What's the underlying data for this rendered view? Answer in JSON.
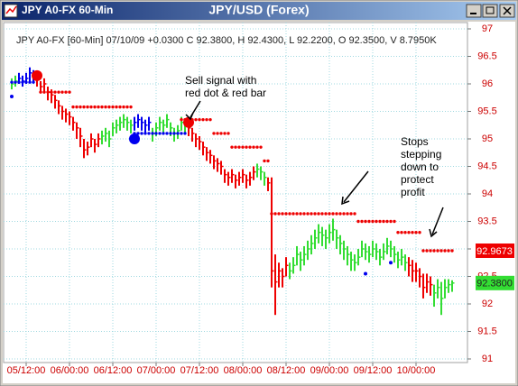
{
  "chart_data": {
    "type": "ohlc",
    "window_title": "JPY A0-FX 60-Min",
    "title": "JPY/USD (Forex)",
    "info": "JPY A0-FX [60-Min] 07/10/09 +0.0300 C 92.3800, H 92.4300, L 92.2200, O 92.3500, V 8.7950K",
    "categories": [
      null,
      null,
      null,
      null,
      "05/12:00",
      null,
      null,
      null,
      null,
      null,
      null,
      null,
      null,
      null,
      null,
      null,
      "06/00:00",
      null,
      null,
      null,
      null,
      null,
      null,
      null,
      null,
      null,
      null,
      null,
      "06/12:00",
      null,
      null,
      null,
      null,
      null,
      null,
      null,
      null,
      null,
      null,
      null,
      "07/00:00",
      null,
      null,
      null,
      null,
      null,
      null,
      null,
      null,
      null,
      null,
      null,
      "07/12:00",
      null,
      null,
      null,
      null,
      null,
      null,
      null,
      null,
      null,
      null,
      null,
      "08/00:00",
      null,
      null,
      null,
      null,
      null,
      null,
      null,
      null,
      null,
      null,
      null,
      "08/12:00",
      null,
      null,
      null,
      null,
      null,
      null,
      null,
      null,
      null,
      null,
      null,
      "09/00:00",
      null,
      null,
      null,
      null,
      null,
      null,
      null,
      null,
      null,
      null,
      null,
      "09/12:00",
      null,
      null,
      null,
      null,
      null,
      null,
      null,
      null,
      null,
      null,
      null,
      "10/00:00",
      null,
      null,
      null,
      null,
      null,
      null,
      null,
      null,
      null,
      null
    ],
    "high": [
      96.1,
      96.15,
      96.2,
      96.15,
      96.2,
      96.3,
      96.25,
      96.2,
      96.05,
      96.1,
      95.95,
      95.9,
      95.8,
      95.7,
      95.6,
      95.55,
      95.5,
      95.4,
      95.3,
      95.2,
      95.0,
      94.95,
      95.1,
      95.0,
      95.1,
      95.15,
      95.2,
      95.15,
      95.3,
      95.35,
      95.4,
      95.45,
      95.4,
      95.35,
      95.4,
      95.45,
      95.4,
      95.35,
      95.4,
      95.2,
      95.3,
      95.4,
      95.35,
      95.45,
      95.3,
      95.2,
      95.25,
      95.4,
      95.35,
      95.3,
      95.2,
      95.1,
      95.05,
      94.95,
      94.85,
      94.8,
      94.7,
      94.65,
      94.6,
      94.45,
      94.4,
      94.45,
      94.35,
      94.4,
      94.45,
      94.35,
      94.4,
      94.5,
      94.55,
      94.5,
      94.4,
      94.3,
      94.3,
      92.9,
      92.75,
      92.65,
      92.85,
      92.75,
      92.85,
      93.05,
      92.95,
      93.05,
      93.15,
      93.25,
      93.35,
      93.45,
      93.4,
      93.35,
      93.45,
      93.55,
      93.35,
      93.25,
      93.15,
      93.05,
      92.95,
      92.9,
      93.0,
      93.15,
      93.1,
      93.05,
      93.15,
      93.1,
      93.0,
      93.1,
      93.2,
      93.15,
      93.05,
      92.95,
      93.0,
      92.9,
      92.85,
      92.8,
      92.75,
      92.65,
      92.55,
      92.55,
      92.5,
      92.35,
      92.45,
      92.4,
      92.45,
      92.45,
      92.43
    ],
    "low": [
      95.9,
      95.95,
      96.0,
      95.95,
      96.0,
      96.05,
      96.05,
      95.95,
      95.85,
      95.85,
      95.7,
      95.65,
      95.55,
      95.45,
      95.35,
      95.3,
      95.25,
      95.15,
      95.0,
      94.85,
      94.65,
      94.7,
      94.85,
      94.75,
      94.85,
      94.9,
      94.95,
      94.85,
      95.05,
      95.1,
      95.15,
      95.2,
      95.15,
      95.1,
      95.15,
      95.2,
      95.15,
      95.1,
      95.15,
      94.95,
      95.05,
      95.15,
      95.1,
      95.2,
      95.05,
      94.95,
      95.0,
      95.15,
      95.1,
      95.05,
      94.95,
      94.85,
      94.8,
      94.7,
      94.6,
      94.55,
      94.45,
      94.4,
      94.35,
      94.2,
      94.15,
      94.2,
      94.1,
      94.15,
      94.2,
      94.1,
      94.15,
      94.25,
      94.3,
      94.25,
      94.15,
      94.05,
      92.3,
      91.8,
      92.3,
      92.3,
      92.5,
      92.45,
      92.55,
      92.7,
      92.6,
      92.7,
      92.8,
      92.9,
      93.0,
      93.1,
      93.05,
      93.0,
      93.1,
      93.15,
      93.0,
      92.9,
      92.8,
      92.7,
      92.6,
      92.6,
      92.7,
      92.85,
      92.8,
      92.75,
      92.85,
      92.8,
      92.7,
      92.8,
      92.9,
      92.85,
      92.75,
      92.65,
      92.7,
      92.6,
      92.5,
      92.4,
      92.4,
      92.3,
      92.1,
      92.2,
      92.15,
      91.95,
      92.1,
      91.8,
      92.1,
      92.2,
      92.22
    ],
    "close": [
      96.0,
      96.05,
      96.1,
      96.05,
      96.1,
      96.2,
      96.15,
      96.1,
      95.95,
      96.0,
      95.85,
      95.8,
      95.7,
      95.6,
      95.5,
      95.45,
      95.4,
      95.3,
      95.2,
      95.05,
      94.8,
      94.85,
      95.0,
      94.9,
      95.0,
      95.05,
      95.1,
      95.0,
      95.2,
      95.25,
      95.3,
      95.35,
      95.3,
      95.25,
      95.3,
      95.35,
      95.3,
      95.25,
      95.3,
      95.1,
      95.2,
      95.3,
      95.25,
      95.35,
      95.2,
      95.1,
      95.15,
      95.3,
      95.25,
      95.2,
      95.1,
      95.0,
      94.95,
      94.85,
      94.75,
      94.7,
      94.6,
      94.55,
      94.5,
      94.35,
      94.3,
      94.35,
      94.25,
      94.3,
      94.35,
      94.25,
      94.3,
      94.4,
      94.45,
      94.4,
      94.3,
      94.2,
      92.6,
      92.4,
      92.6,
      92.5,
      92.7,
      92.6,
      92.7,
      92.9,
      92.8,
      92.9,
      93.0,
      93.1,
      93.2,
      93.3,
      93.25,
      93.2,
      93.3,
      93.35,
      93.2,
      93.1,
      93.0,
      92.9,
      92.8,
      92.75,
      92.85,
      93.0,
      92.95,
      92.9,
      93.0,
      92.95,
      92.85,
      92.95,
      93.05,
      93.0,
      92.9,
      92.8,
      92.85,
      92.75,
      92.7,
      92.6,
      92.6,
      92.5,
      92.3,
      92.4,
      92.35,
      92.2,
      92.3,
      92.1,
      92.3,
      92.35,
      92.38
    ],
    "colors": [
      "#3d3",
      "#3d3",
      "#00e",
      "#00e",
      "#00e",
      "#00e",
      "#00e",
      "#e00",
      "#e00",
      "#e00",
      "#e00",
      "#e00",
      "#e00",
      "#e00",
      "#e00",
      "#e00",
      "#e00",
      "#e00",
      "#e00",
      "#e00",
      "#e00",
      "#e00",
      "#e00",
      "#e00",
      "#e00",
      "#3d3",
      "#3d3",
      "#3d3",
      "#3d3",
      "#3d3",
      "#3d3",
      "#3d3",
      "#3d3",
      "#3d3",
      "#00e",
      "#00e",
      "#00e",
      "#00e",
      "#00e",
      "#3d3",
      "#3d3",
      "#3d3",
      "#3d3",
      "#3d3",
      "#3d3",
      "#3d3",
      "#3d3",
      "#3d3",
      "#3d3",
      "#e00",
      "#e00",
      "#e00",
      "#e00",
      "#e00",
      "#e00",
      "#e00",
      "#e00",
      "#e00",
      "#e00",
      "#e00",
      "#e00",
      "#e00",
      "#e00",
      "#e00",
      "#e00",
      "#e00",
      "#e00",
      "#e00",
      "#3d3",
      "#3d3",
      "#3d3",
      "#e00",
      "#e00",
      "#e00",
      "#e00",
      "#e00",
      "#e00",
      "#3d3",
      "#3d3",
      "#3d3",
      "#3d3",
      "#3d3",
      "#3d3",
      "#3d3",
      "#3d3",
      "#3d3",
      "#3d3",
      "#3d3",
      "#3d3",
      "#3d3",
      "#3d3",
      "#3d3",
      "#3d3",
      "#3d3",
      "#3d3",
      "#3d3",
      "#3d3",
      "#3d3",
      "#3d3",
      "#3d3",
      "#3d3",
      "#3d3",
      "#3d3",
      "#3d3",
      "#3d3",
      "#3d3",
      "#3d3",
      "#3d3",
      "#3d3",
      "#3d3",
      "#e00",
      "#e00",
      "#e00",
      "#e00",
      "#e00",
      "#e00",
      "#e00",
      "#3d3",
      "#3d3",
      "#3d3",
      "#3d3",
      "#3d3",
      "#3d3"
    ],
    "stops": [
      null,
      null,
      null,
      null,
      null,
      null,
      null,
      null,
      95.85,
      95.85,
      95.85,
      95.85,
      95.85,
      95.85,
      95.85,
      95.85,
      95.85,
      95.58,
      95.58,
      95.58,
      95.58,
      95.58,
      95.58,
      95.58,
      95.58,
      95.58,
      95.58,
      95.58,
      95.58,
      95.58,
      95.58,
      95.58,
      95.58,
      95.58,
      null,
      null,
      null,
      null,
      null,
      null,
      null,
      null,
      null,
      null,
      null,
      null,
      null,
      95.35,
      95.35,
      95.35,
      95.35,
      95.35,
      95.35,
      95.35,
      95.35,
      95.35,
      95.1,
      95.1,
      95.1,
      95.1,
      95.1,
      94.85,
      94.85,
      94.85,
      94.85,
      94.85,
      94.85,
      94.85,
      94.85,
      94.85,
      94.6,
      94.6,
      93.64,
      93.64,
      93.64,
      93.64,
      93.64,
      93.64,
      93.64,
      93.64,
      93.64,
      93.64,
      93.64,
      93.64,
      93.64,
      93.64,
      93.64,
      93.64,
      93.64,
      93.64,
      93.64,
      93.64,
      93.64,
      93.64,
      93.64,
      93.64,
      93.5,
      93.5,
      93.5,
      93.5,
      93.5,
      93.5,
      93.5,
      93.5,
      93.5,
      93.5,
      93.5,
      93.3,
      93.3,
      93.3,
      93.3,
      93.3,
      93.3,
      93.3,
      92.9673,
      92.9673,
      92.9673,
      92.9673,
      92.9673,
      92.9673,
      92.9673,
      92.9673,
      92.9673
    ],
    "stops_color": "#e00",
    "trail": [
      96.03,
      96.03,
      96.03,
      96.03,
      96.03,
      96.03,
      96.03,
      null,
      null,
      null,
      null,
      null,
      null,
      null,
      null,
      null,
      null,
      null,
      null,
      null,
      null,
      null,
      null,
      null,
      null,
      null,
      null,
      null,
      null,
      null,
      null,
      null,
      null,
      null,
      95.1,
      95.1,
      95.1,
      95.1,
      95.1,
      95.1,
      95.1,
      95.1,
      95.1,
      95.1,
      95.1,
      95.1,
      95.1,
      95.1,
      95.1,
      null,
      null,
      null,
      null,
      null,
      null,
      null,
      null,
      null,
      null,
      null,
      null,
      null,
      null,
      null,
      null,
      null,
      null,
      null,
      null,
      null,
      null,
      null,
      null,
      null,
      null,
      null,
      null,
      null,
      null,
      null,
      null,
      null,
      null,
      null,
      null,
      null,
      null,
      null,
      null,
      null,
      null,
      null,
      null,
      null,
      null,
      null,
      null,
      null,
      null,
      null,
      null,
      null,
      null,
      null,
      null,
      null,
      null,
      null,
      null,
      null,
      null,
      null,
      null,
      null,
      null,
      null,
      null,
      null,
      null,
      null,
      null,
      null,
      null
    ],
    "trail_color": "#00e",
    "signals": {
      "index": [
        7,
        34,
        49
      ],
      "values": [
        96.15,
        95.0,
        95.3
      ],
      "colors": [
        "#e00",
        "#00e",
        "#e00"
      ]
    },
    "dots": {
      "index": [
        0,
        98,
        105
      ],
      "values": [
        95.77,
        92.55,
        92.75
      ],
      "color": "#00e"
    },
    "price_tags": {
      "values": [
        92.9673,
        92.38
      ],
      "value_labels": [
        "92.9673",
        "92.3800"
      ],
      "colors": [
        "#e00",
        "#3d3"
      ],
      "text_colors": [
        "#fff",
        "#222"
      ]
    },
    "annotations": [
      [
        "Sell signal with",
        "red dot & red bar"
      ],
      [
        "Stops",
        "stepping",
        "down to",
        "protect",
        "profit"
      ]
    ],
    "ylim": [
      91,
      97
    ],
    "yticks": [
      91,
      91.5,
      92,
      92.5,
      93,
      93.5,
      94,
      94.5,
      95,
      95.5,
      96,
      96.5,
      97
    ],
    "axis_color": "#cc0000",
    "grid": true
  }
}
